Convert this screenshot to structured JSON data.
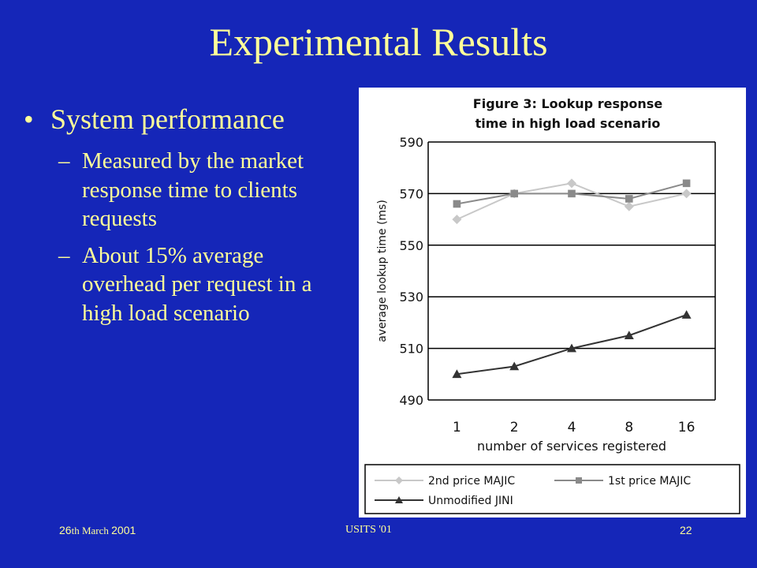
{
  "slide": {
    "title": "Experimental Results",
    "bullet": "System performance",
    "sub_bullets": [
      "Measured by the market response time to clients requests",
      "About 15% average overhead per request in a high load scenario"
    ]
  },
  "footer": {
    "date_prefix": "26",
    "date_middle": "th March ",
    "date_year": "2001",
    "center": "USITS '01",
    "page": "22"
  },
  "chart_data": {
    "type": "line",
    "title": "Figure 3:  Lookup response time in high load scenario",
    "title_lines": [
      "Figure 3:  Lookup response",
      "time in high load scenario"
    ],
    "xlabel": "number of services registered",
    "ylabel": "average lookup time (ms)",
    "categories": [
      "1",
      "2",
      "4",
      "8",
      "16"
    ],
    "ylim": [
      490,
      590
    ],
    "yticks": [
      "490",
      "510",
      "530",
      "550",
      "570",
      "590"
    ],
    "grid": true,
    "legend_position": "bottom",
    "series": [
      {
        "name": "2nd price MAJIC",
        "values": [
          560,
          570,
          574,
          565,
          570
        ],
        "marker": "diamond",
        "color": "#c8c8c8"
      },
      {
        "name": "1st price MAJIC",
        "values": [
          566,
          570,
          570,
          568,
          574
        ],
        "marker": "square",
        "color": "#8a8a8a"
      },
      {
        "name": "Unmodified JINI",
        "values": [
          500,
          503,
          510,
          515,
          523
        ],
        "marker": "triangle",
        "color": "#333333"
      }
    ]
  }
}
